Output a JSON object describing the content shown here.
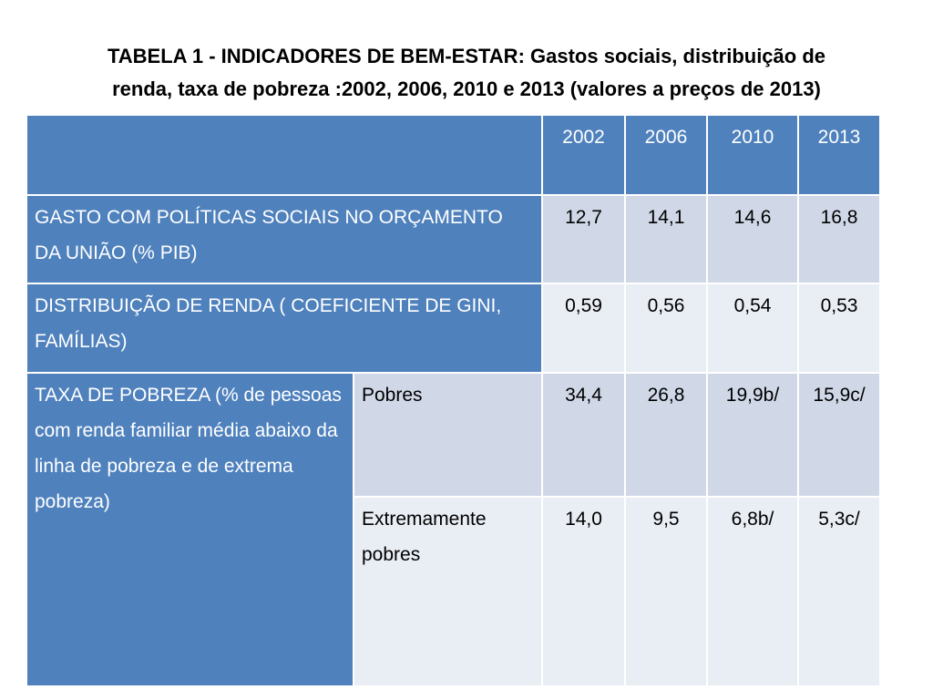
{
  "title": {
    "line1": "TABELA 1 - INDICADORES DE BEM-ESTAR:  Gastos sociais, distribuição de",
    "line2": "renda, taxa de pobreza :2002, 2006, 2010 e 2013 (valores a preços de 2013)"
  },
  "table": {
    "years": [
      "2002",
      "2006",
      "2010",
      "2013"
    ],
    "rows": [
      {
        "label": "GASTO COM POLÍTICAS SOCIAIS NO ORÇAMENTO DA UNIÃO (% PIB)",
        "values": [
          "12,7",
          "14,1",
          "14,6",
          "16,8"
        ]
      },
      {
        "label": "DISTRIBUIÇÃO DE  RENDA ( COEFICIENTE DE GINI, FAMÍLIAS)",
        "values": [
          "0,59",
          "0,56",
          "0,54",
          "0,53"
        ]
      }
    ],
    "poverty": {
      "label": "TAXA DE POBREZA (% de pessoas com renda familiar média abaixo da linha de pobreza e de extrema pobreza)",
      "subrows": [
        {
          "label": "Pobres",
          "values": [
            "34,4",
            "26,8",
            "19,9b/",
            "15,9c/"
          ]
        },
        {
          "label": "Extremamente pobres",
          "values": [
            "14,0",
            "9,5",
            "6,8b/",
            "5,3c/"
          ]
        }
      ]
    }
  },
  "colors": {
    "header_blue": "#4f81bd",
    "band_dark": "#d0d8e8",
    "band_light": "#e9edf4"
  }
}
